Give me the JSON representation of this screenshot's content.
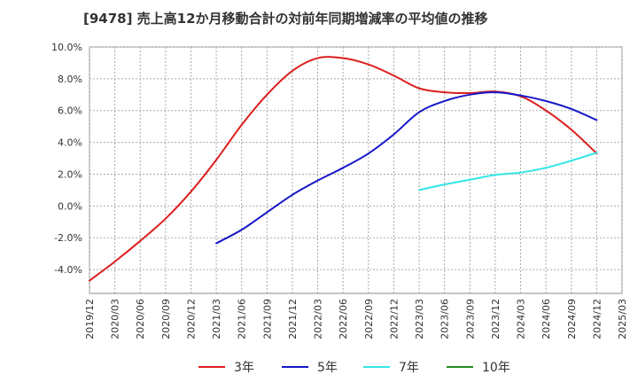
{
  "chart_data": {
    "type": "line",
    "title": "[9478]  売上高12か月移動合計の対前年同期増減率の平均値の推移",
    "xlabel": "",
    "ylabel": "",
    "ylim": [
      -5.5,
      10.0
    ],
    "yticks": [
      10.0,
      8.0,
      6.0,
      4.0,
      2.0,
      0.0,
      -2.0,
      -4.0
    ],
    "ytick_labels": [
      "10.0%",
      "8.0%",
      "6.0%",
      "4.0%",
      "2.0%",
      "0.0%",
      "-2.0%",
      "-4.0%"
    ],
    "x_ticks": [
      "2019/12",
      "2020/03",
      "2020/06",
      "2020/09",
      "2020/12",
      "2021/03",
      "2021/06",
      "2021/09",
      "2021/12",
      "2022/03",
      "2022/06",
      "2022/09",
      "2022/12",
      "2023/03",
      "2023/06",
      "2023/09",
      "2023/12",
      "2024/03",
      "2024/06",
      "2024/09",
      "2024/12",
      "2025/03"
    ],
    "grid": true,
    "legend_position": "bottom",
    "series": [
      {
        "name": "3年",
        "color": "#dd1f1f",
        "points": [
          [
            "2019/12",
            -4.7
          ],
          [
            "2020/03",
            -3.5
          ],
          [
            "2020/06",
            -2.2
          ],
          [
            "2020/09",
            -0.8
          ],
          [
            "2020/12",
            0.9
          ],
          [
            "2021/03",
            2.9
          ],
          [
            "2021/06",
            5.1
          ],
          [
            "2021/09",
            7.0
          ],
          [
            "2021/12",
            8.5
          ],
          [
            "2022/03",
            9.3
          ],
          [
            "2022/06",
            9.3
          ],
          [
            "2022/09",
            8.9
          ],
          [
            "2022/12",
            8.2
          ],
          [
            "2023/03",
            7.4
          ],
          [
            "2023/06",
            7.15
          ],
          [
            "2023/09",
            7.1
          ],
          [
            "2023/12",
            7.2
          ],
          [
            "2024/03",
            6.9
          ],
          [
            "2024/06",
            6.0
          ],
          [
            "2024/09",
            4.8
          ],
          [
            "2024/12",
            3.3
          ]
        ]
      },
      {
        "name": "5年",
        "color": "#1616c8",
        "points": [
          [
            "2021/03",
            -2.35
          ],
          [
            "2021/06",
            -1.5
          ],
          [
            "2021/09",
            -0.4
          ],
          [
            "2021/12",
            0.7
          ],
          [
            "2022/03",
            1.6
          ],
          [
            "2022/06",
            2.4
          ],
          [
            "2022/09",
            3.3
          ],
          [
            "2022/12",
            4.5
          ],
          [
            "2023/03",
            5.9
          ],
          [
            "2023/06",
            6.6
          ],
          [
            "2023/09",
            7.0
          ],
          [
            "2023/12",
            7.15
          ],
          [
            "2024/03",
            6.95
          ],
          [
            "2024/06",
            6.6
          ],
          [
            "2024/09",
            6.1
          ],
          [
            "2024/12",
            5.4
          ]
        ]
      },
      {
        "name": "7年",
        "color": "#33e6e6",
        "points": [
          [
            "2023/03",
            1.0
          ],
          [
            "2023/06",
            1.35
          ],
          [
            "2023/09",
            1.65
          ],
          [
            "2023/12",
            1.95
          ],
          [
            "2024/03",
            2.1
          ],
          [
            "2024/06",
            2.4
          ],
          [
            "2024/09",
            2.85
          ],
          [
            "2024/12",
            3.35
          ]
        ]
      },
      {
        "name": "10年",
        "color": "#228b22",
        "points": []
      }
    ]
  }
}
